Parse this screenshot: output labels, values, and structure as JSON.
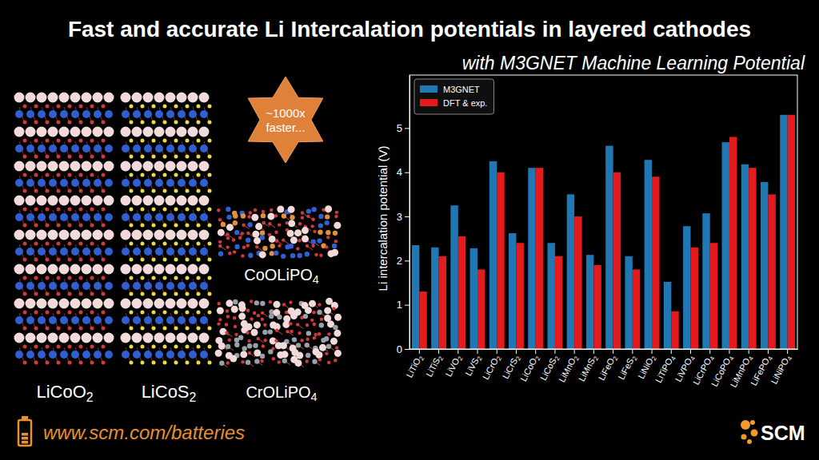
{
  "header": {
    "title": "Fast and accurate Li Intercalation potentials in layered cathodes",
    "subtitle": "with M3GNET Machine Learning Potential"
  },
  "structures": [
    "LiCoO2",
    "LiCoS2",
    "CoOLiPO4",
    "CrOLiPO4"
  ],
  "badge": [
    "~1000x",
    "faster..."
  ],
  "footer": {
    "url": "www.scm.com/batteries",
    "logo": "SCM"
  },
  "chart_data": {
    "type": "bar",
    "ylabel": "Li intercalation potential (V)",
    "categories": [
      "LiTiO2",
      "LiTiS2",
      "LiVO2",
      "LiVS2",
      "LiCrO2",
      "LiCrS2",
      "LiCoO2",
      "LiCoS2",
      "LiMnO2",
      "LiMnS2",
      "LiFeO2",
      "LiFeS2",
      "LiNiO2",
      "LiTiPO4",
      "LiVPO4",
      "LiCrPO4",
      "LiCoPO4",
      "LiMnPO4",
      "LiFePO4",
      "LiNiPO4"
    ],
    "series": [
      {
        "name": "M3GNET",
        "color": "#1f77b4",
        "values": [
          2.35,
          2.3,
          3.25,
          2.28,
          4.25,
          2.62,
          4.1,
          2.4,
          3.5,
          2.13,
          4.6,
          2.1,
          4.28,
          1.52,
          2.78,
          3.07,
          4.68,
          4.18,
          3.78,
          5.3
        ]
      },
      {
        "name": "DFT & exp.",
        "color": "#e41a1c",
        "values": [
          1.3,
          2.1,
          2.55,
          1.8,
          4.0,
          2.4,
          4.1,
          2.1,
          3.0,
          1.9,
          4.0,
          1.8,
          3.9,
          0.85,
          2.3,
          2.4,
          4.8,
          4.1,
          3.5,
          5.3
        ]
      }
    ],
    "ylim": [
      0,
      6.2
    ],
    "yticks": [
      0,
      1,
      2,
      3,
      4,
      5
    ],
    "grid": false,
    "legend": "upper left"
  }
}
